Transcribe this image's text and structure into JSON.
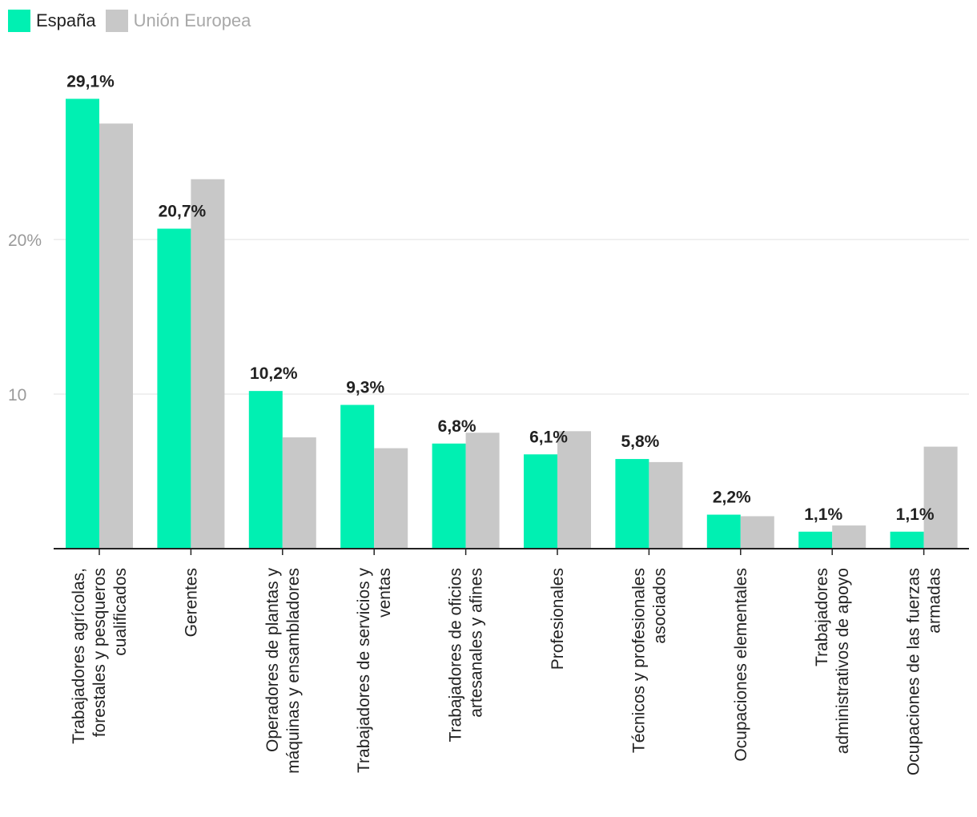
{
  "legend": {
    "items": [
      {
        "label": "España",
        "color": "#00f0b2",
        "text_color": "#222222"
      },
      {
        "label": "Unión Europea",
        "color": "#c8c8c8",
        "text_color": "#a8a8a8"
      }
    ]
  },
  "chart_data": {
    "type": "bar",
    "title": "",
    "xlabel": "",
    "ylabel": "",
    "ylim": [
      0,
      30
    ],
    "y_ticks": [
      {
        "value": 10,
        "label": "10"
      },
      {
        "value": 20,
        "label": "20%"
      }
    ],
    "grid": true,
    "legend_position": "top-left",
    "categories": [
      "Trabajadores agrícolas, forestales y pesqueros cualificados",
      "Gerentes",
      "Operadores de plantas y máquinas y ensambladores",
      "Trabajadores de servicios y ventas",
      "Trabajadores de oficios artesanales y afines",
      "Profesionales",
      "Técnicos y profesionales asociados",
      "Ocupaciones elementales",
      "Trabajadores administrativos de apoyo",
      "Ocupaciones de las fuerzas armadas"
    ],
    "category_lines": [
      [
        "Trabajadores agrícolas,",
        "forestales y pesqueros",
        "cualificados"
      ],
      [
        "Gerentes"
      ],
      [
        "Operadores de plantas y",
        "máquinas y ensambladores"
      ],
      [
        "Trabajadores de servicios y",
        "ventas"
      ],
      [
        "Trabajadores de oficios",
        "artesanales y afines"
      ],
      [
        "Profesionales"
      ],
      [
        "Técnicos y profesionales",
        "asociados"
      ],
      [
        "Ocupaciones elementales"
      ],
      [
        "Trabajadores",
        "administrativos de apoyo"
      ],
      [
        "Ocupaciones de las fuerzas",
        "armadas"
      ]
    ],
    "series": [
      {
        "name": "España",
        "color": "#00f0b2",
        "values": [
          29.1,
          20.7,
          10.2,
          9.3,
          6.8,
          6.1,
          5.8,
          2.2,
          1.1,
          1.1
        ],
        "data_labels": [
          "29,1%",
          "20,7%",
          "10,2%",
          "9,3%",
          "6,8%",
          "6,1%",
          "5,8%",
          "2,2%",
          "1,1%",
          "1,1%"
        ]
      },
      {
        "name": "Unión Europea",
        "color": "#c8c8c8",
        "values": [
          27.5,
          23.9,
          7.2,
          6.5,
          7.5,
          7.6,
          5.6,
          2.1,
          1.5,
          6.6
        ]
      }
    ]
  }
}
